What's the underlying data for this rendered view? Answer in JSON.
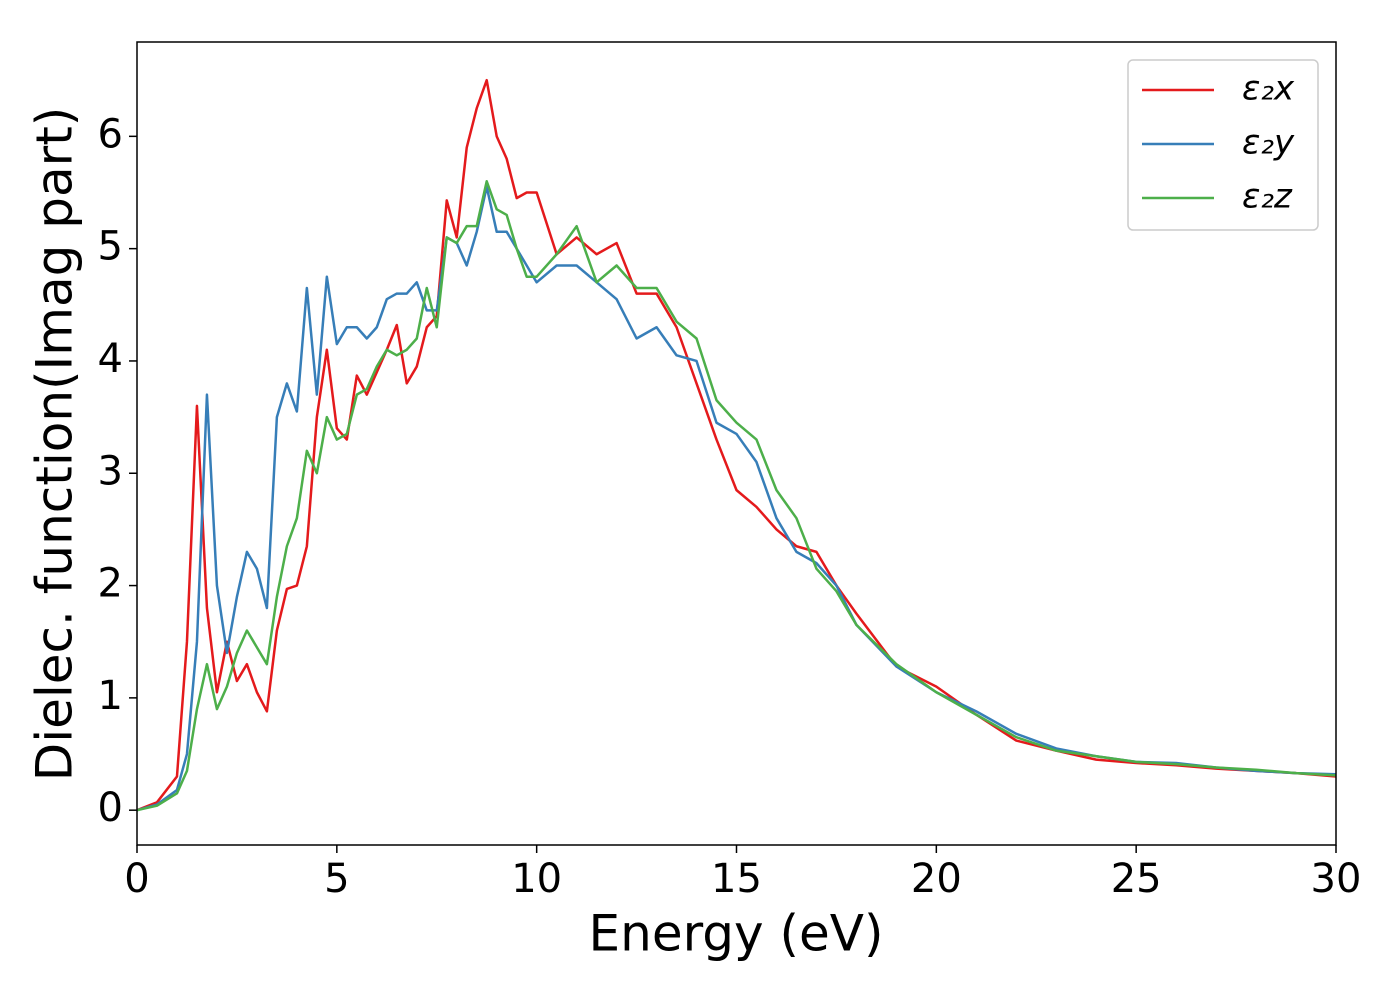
{
  "chart_data": {
    "type": "line",
    "x_label": "Energy (eV)",
    "y_label": "Dielec. function(Imag part)",
    "x": [
      0,
      0.5,
      1,
      1.25,
      1.5,
      1.75,
      2,
      2.25,
      2.5,
      2.75,
      3,
      3.25,
      3.5,
      3.75,
      4,
      4.25,
      4.5,
      4.75,
      5,
      5.25,
      5.5,
      5.75,
      6,
      6.25,
      6.5,
      6.75,
      7,
      7.25,
      7.5,
      7.75,
      8,
      8.25,
      8.5,
      8.75,
      9,
      9.25,
      9.5,
      9.75,
      10,
      10.5,
      11,
      11.5,
      12,
      12.5,
      13,
      13.5,
      14,
      14.5,
      15,
      15.5,
      16,
      16.5,
      17,
      17.5,
      18,
      19,
      20,
      21,
      22,
      23,
      24,
      25,
      26,
      27,
      28,
      29,
      30
    ],
    "series": [
      {
        "name": "ε₂x",
        "color": "#e41a1c",
        "values": [
          0,
          0.07,
          0.3,
          1.5,
          3.6,
          1.8,
          1.05,
          1.5,
          1.15,
          1.3,
          1.05,
          0.88,
          1.6,
          1.97,
          2.0,
          2.35,
          3.5,
          4.1,
          3.4,
          3.3,
          3.87,
          3.7,
          3.9,
          4.1,
          4.32,
          3.8,
          3.95,
          4.3,
          4.4,
          5.43,
          5.1,
          5.9,
          6.25,
          6.5,
          6.0,
          5.8,
          5.45,
          5.5,
          5.5,
          4.95,
          5.1,
          4.95,
          5.05,
          4.6,
          4.6,
          4.3,
          3.8,
          3.3,
          2.85,
          2.7,
          2.5,
          2.35,
          2.3,
          2.0,
          1.75,
          1.28,
          1.1,
          0.85,
          0.62,
          0.53,
          0.45,
          0.42,
          0.4,
          0.37,
          0.35,
          0.33,
          0.3
        ]
      },
      {
        "name": "ε₂y",
        "color": "#377eb8",
        "values": [
          0,
          0.05,
          0.18,
          0.5,
          1.5,
          3.7,
          2.0,
          1.4,
          1.9,
          2.3,
          2.15,
          1.8,
          3.5,
          3.8,
          3.55,
          4.65,
          3.7,
          4.75,
          4.15,
          4.3,
          4.3,
          4.2,
          4.3,
          4.55,
          4.6,
          4.6,
          4.7,
          4.45,
          4.45,
          5.1,
          5.05,
          4.85,
          5.15,
          5.55,
          5.15,
          5.15,
          5.0,
          4.85,
          4.7,
          4.85,
          4.85,
          4.7,
          4.55,
          4.2,
          4.3,
          4.05,
          4.0,
          3.45,
          3.35,
          3.1,
          2.6,
          2.3,
          2.2,
          2.0,
          1.65,
          1.28,
          1.05,
          0.88,
          0.68,
          0.55,
          0.48,
          0.43,
          0.42,
          0.38,
          0.35,
          0.33,
          0.32
        ]
      },
      {
        "name": "ε₂z",
        "color": "#4daf4a",
        "values": [
          0,
          0.04,
          0.15,
          0.35,
          0.9,
          1.3,
          0.9,
          1.1,
          1.4,
          1.6,
          1.45,
          1.3,
          1.9,
          2.35,
          2.6,
          3.2,
          3.0,
          3.5,
          3.3,
          3.35,
          3.7,
          3.75,
          3.95,
          4.1,
          4.05,
          4.1,
          4.2,
          4.65,
          4.3,
          5.1,
          5.05,
          5.2,
          5.2,
          5.6,
          5.35,
          5.3,
          5.0,
          4.75,
          4.75,
          4.95,
          5.2,
          4.7,
          4.85,
          4.65,
          4.65,
          4.35,
          4.2,
          3.65,
          3.45,
          3.3,
          2.85,
          2.6,
          2.15,
          1.95,
          1.65,
          1.3,
          1.05,
          0.85,
          0.65,
          0.53,
          0.48,
          0.43,
          0.41,
          0.38,
          0.36,
          0.33,
          0.31
        ]
      }
    ],
    "xlim": [
      0,
      30
    ],
    "xticks": [
      0,
      5,
      10,
      15,
      20,
      25,
      30
    ],
    "ylim": [
      -0.31,
      6.84
    ],
    "yticks": [
      0,
      1,
      2,
      3,
      4,
      5,
      6
    ],
    "grid": false,
    "legend": "upper right"
  }
}
